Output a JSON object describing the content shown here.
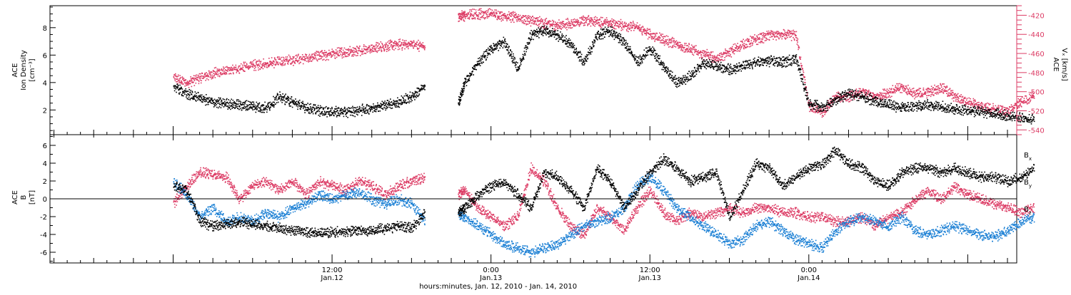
{
  "chart_data": [
    {
      "type": "scatter",
      "panel": "top",
      "ylabel_lines": [
        "ACE",
        "Ion Density",
        "[cm⁻³]"
      ],
      "ylim": [
        0.2,
        9.6
      ],
      "yticks": [
        2,
        4,
        6,
        8
      ],
      "y2label_lines": [
        "ACE",
        "Vₓ [km/s]"
      ],
      "y2lim": [
        -545,
        -410
      ],
      "y2ticks": [
        -420,
        -440,
        -460,
        -480,
        -500,
        -520,
        -540
      ],
      "grid": false,
      "legend": "none",
      "gaps": [
        [
          19.3,
          21.5
        ]
      ],
      "series": [
        {
          "color": "#000000",
          "axis": "left",
          "x": [
            0,
            1,
            2,
            3,
            4,
            5,
            6,
            7,
            8,
            9,
            10,
            11,
            12,
            13,
            14,
            15,
            16,
            17,
            18,
            19,
            21.5,
            22,
            23,
            24,
            25,
            26,
            27,
            28,
            29,
            30,
            31,
            32,
            33,
            34,
            35,
            36,
            37,
            38,
            39,
            40,
            41,
            42,
            43,
            44,
            45,
            46,
            47,
            48,
            49,
            50,
            51,
            52,
            53,
            54,
            55,
            56,
            57,
            58,
            59,
            60,
            61,
            62,
            63,
            64,
            65
          ],
          "y": [
            3.8,
            3.2,
            2.9,
            2.6,
            2.5,
            2.4,
            2.3,
            2.2,
            3.0,
            2.6,
            2.2,
            2.0,
            1.9,
            1.9,
            2.0,
            2.2,
            2.4,
            2.6,
            3.0,
            3.8,
            2.5,
            4.0,
            5.5,
            6.5,
            7.0,
            5.0,
            7.5,
            7.8,
            7.5,
            6.8,
            5.5,
            7.5,
            7.8,
            7.0,
            5.5,
            6.5,
            5.2,
            4.0,
            4.5,
            5.5,
            5.2,
            5.0,
            5.2,
            5.5,
            5.6,
            5.5,
            5.8,
            2.5,
            2.2,
            2.8,
            3.2,
            3.0,
            2.7,
            2.4,
            2.2,
            2.3,
            2.4,
            2.3,
            2.1,
            2.0,
            1.9,
            1.8,
            1.6,
            1.5,
            1.3
          ]
        },
        {
          "color": "#dc3b64",
          "axis": "right",
          "x": [
            0,
            1,
            2,
            3,
            4,
            5,
            6,
            7,
            8,
            9,
            10,
            11,
            12,
            13,
            14,
            15,
            16,
            17,
            18,
            19,
            21.5,
            22,
            23,
            24,
            25,
            26,
            27,
            28,
            29,
            30,
            31,
            32,
            33,
            34,
            35,
            36,
            37,
            38,
            39,
            40,
            41,
            42,
            43,
            44,
            45,
            46,
            47,
            48,
            49,
            50,
            51,
            52,
            53,
            54,
            55,
            56,
            57,
            58,
            59,
            60,
            61,
            62,
            63,
            64,
            65
          ],
          "y": [
            -485,
            -490,
            -485,
            -480,
            -478,
            -475,
            -472,
            -470,
            -468,
            -466,
            -465,
            -462,
            -460,
            -458,
            -456,
            -454,
            -452,
            -450,
            -450,
            -452,
            -420,
            -420,
            -418,
            -418,
            -420,
            -422,
            -425,
            -428,
            -430,
            -428,
            -425,
            -426,
            -428,
            -430,
            -432,
            -440,
            -445,
            -450,
            -455,
            -460,
            -465,
            -458,
            -450,
            -445,
            -440,
            -440,
            -440,
            -515,
            -522,
            -505,
            -505,
            -500,
            -505,
            -500,
            -495,
            -502,
            -500,
            -495,
            -505,
            -510,
            -515,
            -518,
            -520,
            -510,
            -505
          ]
        }
      ]
    },
    {
      "type": "scatter",
      "panel": "bottom",
      "ylabel_lines": [
        "ACE",
        "B",
        "[nT]"
      ],
      "ylim": [
        -7.2,
        7.2
      ],
      "yticks": [
        6,
        4,
        2,
        0,
        -2,
        -4,
        -6
      ],
      "grid": false,
      "legend": "right",
      "zero_line": true,
      "gaps": [
        [
          19.3,
          21.5
        ]
      ],
      "x_tick_labels": [
        {
          "x": 12,
          "top": "12:00",
          "bottom": "Jan.12"
        },
        {
          "x": 24,
          "top": "0:00",
          "bottom": "Jan.13"
        },
        {
          "x": 36,
          "top": "12:00",
          "bottom": "Jan.13"
        },
        {
          "x": 48,
          "top": "0:00",
          "bottom": "Jan.14"
        }
      ],
      "xlim": [
        -9.3,
        63.7
      ],
      "xlabel": "hours:minutes, Jan. 12, 2010 - Jan. 14, 2010",
      "series": [
        {
          "name": "Bx",
          "name_main": "B",
          "name_sub": "x",
          "color": "#000000",
          "x": [
            0,
            1,
            2,
            3,
            4,
            5,
            6,
            7,
            8,
            9,
            10,
            11,
            12,
            13,
            14,
            15,
            16,
            17,
            18,
            19,
            21.5,
            22,
            23,
            24,
            25,
            26,
            27,
            28,
            29,
            30,
            31,
            32,
            33,
            34,
            35,
            36,
            37,
            38,
            39,
            40,
            41,
            42,
            43,
            44,
            45,
            46,
            47,
            48,
            49,
            50,
            51,
            52,
            53,
            54,
            55,
            56,
            57,
            58,
            59,
            60,
            61,
            62,
            63,
            64,
            65
          ],
          "y": [
            1.5,
            1.0,
            -2.5,
            -3.0,
            -2.8,
            -2.5,
            -2.8,
            -3.0,
            -3.2,
            -3.5,
            -3.7,
            -3.8,
            -3.7,
            -3.6,
            -3.5,
            -3.5,
            -3.3,
            -3.0,
            -3.2,
            -1.5,
            -1.5,
            -1.0,
            0.5,
            1.5,
            2.0,
            0.5,
            -1.0,
            3.0,
            2.5,
            1.0,
            -1.0,
            3.5,
            2.0,
            -1.0,
            1.0,
            3.0,
            4.5,
            3.5,
            2.0,
            2.5,
            3.0,
            -2.0,
            1.0,
            4.0,
            3.5,
            1.5,
            2.5,
            3.5,
            4.0,
            5.5,
            4.0,
            3.5,
            2.0,
            1.5,
            3.0,
            3.5,
            3.5,
            3.0,
            3.5,
            3.0,
            2.5,
            2.5,
            2.0,
            2.5,
            3.5
          ]
        },
        {
          "name": "By",
          "name_main": "B",
          "name_sub": "y",
          "color": "#1a7fd4",
          "x": [
            0,
            1,
            2,
            3,
            4,
            5,
            6,
            7,
            8,
            9,
            10,
            11,
            12,
            13,
            14,
            15,
            16,
            17,
            18,
            19,
            21.5,
            22,
            23,
            24,
            25,
            26,
            27,
            28,
            29,
            30,
            31,
            32,
            33,
            34,
            35,
            36,
            37,
            38,
            39,
            40,
            41,
            42,
            43,
            44,
            45,
            46,
            47,
            48,
            49,
            50,
            51,
            52,
            53,
            54,
            55,
            56,
            57,
            58,
            59,
            60,
            61,
            62,
            63,
            64,
            65
          ],
          "y": [
            2.0,
            0.5,
            -2.0,
            -1.0,
            -2.5,
            -2.0,
            -2.5,
            -1.5,
            -2.0,
            -1.0,
            -0.5,
            0.5,
            0.0,
            0.5,
            0.8,
            0.0,
            -0.5,
            0.0,
            -0.5,
            -2.5,
            -1.5,
            -2.0,
            -3.0,
            -4.0,
            -5.0,
            -5.5,
            -6.0,
            -5.5,
            -5.0,
            -4.0,
            -3.0,
            -2.5,
            -2.0,
            -1.0,
            1.5,
            2.5,
            1.0,
            -1.0,
            -2.0,
            -3.0,
            -4.0,
            -5.0,
            -4.5,
            -3.0,
            -2.5,
            -3.5,
            -4.5,
            -5.0,
            -5.5,
            -3.5,
            -2.5,
            -2.0,
            -2.5,
            -3.0,
            -2.0,
            -3.5,
            -4.0,
            -3.5,
            -3.0,
            -3.5,
            -4.0,
            -4.2,
            -3.5,
            -2.5,
            -2.0
          ]
        },
        {
          "name": "Bz",
          "name_main": "B",
          "name_sub": "z",
          "color": "#dc3b64",
          "x": [
            0,
            1,
            2,
            3,
            4,
            5,
            6,
            7,
            8,
            9,
            10,
            11,
            12,
            13,
            14,
            15,
            16,
            17,
            18,
            19,
            21.5,
            22,
            23,
            24,
            25,
            26,
            27,
            28,
            29,
            30,
            31,
            32,
            33,
            34,
            35,
            36,
            37,
            38,
            39,
            40,
            41,
            42,
            43,
            44,
            45,
            46,
            47,
            48,
            49,
            50,
            51,
            52,
            53,
            54,
            55,
            56,
            57,
            58,
            59,
            60,
            61,
            62,
            63,
            64,
            65
          ],
          "y": [
            -0.5,
            1.5,
            3.0,
            2.8,
            2.5,
            0.0,
            1.5,
            2.0,
            1.0,
            2.0,
            0.5,
            2.0,
            1.5,
            1.0,
            2.0,
            1.5,
            0.5,
            1.5,
            2.0,
            2.5,
            0.5,
            1.0,
            -1.0,
            -2.0,
            -3.0,
            -2.0,
            3.5,
            2.0,
            -1.0,
            -3.0,
            -4.0,
            -1.0,
            -2.0,
            -3.5,
            -1.0,
            1.0,
            -1.5,
            -2.5,
            -1.5,
            -2.0,
            -1.5,
            -1.0,
            -1.5,
            -1.0,
            -1.0,
            -1.5,
            -1.5,
            -2.0,
            -2.0,
            -2.5,
            -2.5,
            -2.0,
            -3.0,
            -2.0,
            -1.5,
            0.0,
            1.0,
            0.0,
            1.5,
            0.5,
            0.0,
            -0.5,
            -1.0,
            -1.5,
            -1.0
          ]
        }
      ]
    }
  ]
}
